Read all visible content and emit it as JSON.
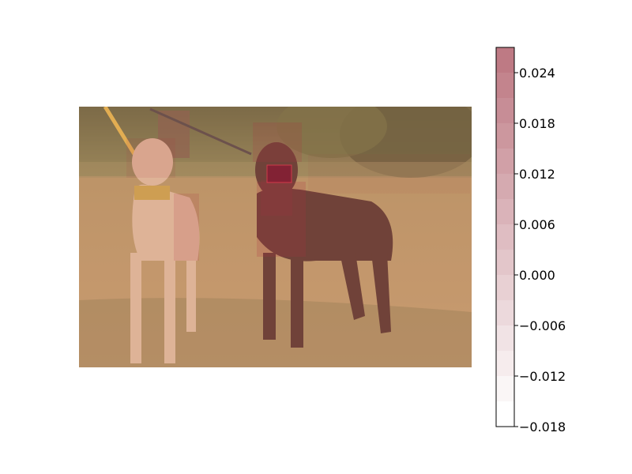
{
  "chart_data": {
    "type": "heatmap",
    "title": "",
    "xlabel": "",
    "ylabel": "",
    "background_image": "photo of two greyhound dogs (light tan and dark brown) standing on grass",
    "colorbar": {
      "cmap": "white-to-red (Reds)",
      "vmin": -0.018,
      "vmax": 0.027,
      "levels": [
        -0.018,
        -0.015,
        -0.012,
        -0.009,
        -0.006,
        -0.003,
        0.0,
        0.003,
        0.006,
        0.009,
        0.012,
        0.015,
        0.018,
        0.021,
        0.024,
        0.027
      ],
      "ticks": [
        "−0.018",
        "−0.012",
        "−0.006",
        "0.000",
        "0.006",
        "0.012",
        "0.018",
        "0.024"
      ],
      "tick_values": [
        -0.018,
        -0.012,
        -0.006,
        0.0,
        0.006,
        0.012,
        0.018,
        0.024
      ]
    },
    "overlay_regions_note": "rectangular saliency patches overlaid on the image; strongest on the dark dog's snout",
    "overlay_regions": [
      {
        "name": "dark-dog-snout",
        "value": 0.027
      },
      {
        "name": "dark-dog-head",
        "value": 0.015
      },
      {
        "name": "dark-dog-chest",
        "value": 0.012
      },
      {
        "name": "dark-dog-neck",
        "value": 0.01
      },
      {
        "name": "light-dog-shoulder",
        "value": 0.008
      },
      {
        "name": "light-dog-head",
        "value": 0.005
      },
      {
        "name": "background-trees",
        "value": 0.003
      },
      {
        "name": "whole-image",
        "value": 0.002
      }
    ]
  },
  "colors": {
    "sky": "#9aa58a",
    "trees_dark": "#3e4a24",
    "trees_mid": "#6b7a3e",
    "grass": "#b59a5c",
    "grass_shadow": "#7f7a42",
    "light_dog": "#e2c9a6",
    "dark_dog": "#3a1c16",
    "leash_yellow": "#e9c13d",
    "overlay_base": "#d88a7a"
  }
}
